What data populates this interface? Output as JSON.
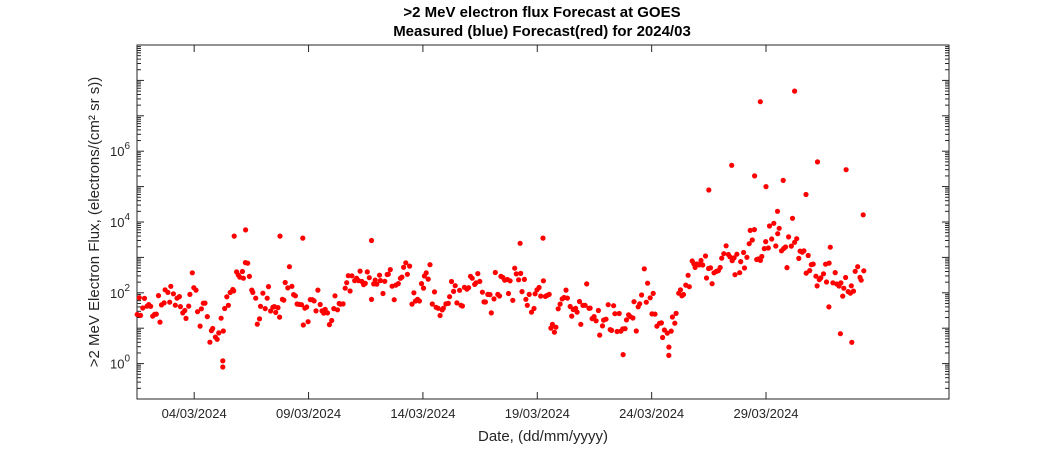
{
  "chart_data": {
    "type": "scatter",
    "title": ">2 MeV electron flux Forecast at GOES",
    "subtitle": "Measured (blue) Forecast(red) for 2024/03",
    "xlabel": "Date, (dd/mm/yyyy)",
    "ylabel": ">2 MeV Electron Flux, (electrons/(cm² sr s))",
    "yscale": "log",
    "xlim": [
      "2024-03-01T12:00",
      "2024-04-06T00:00"
    ],
    "ylim": [
      0.1,
      1000000000
    ],
    "xticks": [
      {
        "date": "2024-03-04",
        "label": "04/03/2024"
      },
      {
        "date": "2024-03-09",
        "label": "09/03/2024"
      },
      {
        "date": "2024-03-14",
        "label": "14/03/2024"
      },
      {
        "date": "2024-03-19",
        "label": "19/03/2024"
      },
      {
        "date": "2024-03-24",
        "label": "24/03/2024"
      },
      {
        "date": "2024-03-29",
        "label": "29/03/2024"
      }
    ],
    "yticks": [
      {
        "value": 1,
        "base": "10",
        "exp": "0"
      },
      {
        "value": 100,
        "base": "10",
        "exp": "2"
      },
      {
        "value": 10000,
        "base": "10",
        "exp": "4"
      },
      {
        "value": 1000000,
        "base": "10",
        "exp": "6"
      }
    ],
    "grid": false,
    "series": [
      {
        "color": "#ff0000",
        "marker": "filled-circle",
        "anchors": [
          [
            "2024-03-01T12:00",
            60
          ],
          [
            "2024-03-02T06:00",
            25
          ],
          [
            "2024-03-03T00:00",
            100
          ],
          [
            "2024-03-03T12:00",
            40
          ],
          [
            "2024-03-04T00:00",
            140
          ],
          [
            "2024-03-04T12:00",
            20
          ],
          [
            "2024-03-05T00:00",
            5
          ],
          [
            "2024-03-05T18:00",
            200
          ],
          [
            "2024-03-06T06:00",
            700
          ],
          [
            "2024-03-06T18:00",
            25
          ],
          [
            "2024-03-07T06:00",
            60
          ],
          [
            "2024-03-07T18:00",
            35
          ],
          [
            "2024-03-08T06:00",
            150
          ],
          [
            "2024-03-08T18:00",
            30
          ],
          [
            "2024-03-09T06:00",
            90
          ],
          [
            "2024-03-09T18:00",
            20
          ],
          [
            "2024-03-10T06:00",
            50
          ],
          [
            "2024-03-10T18:00",
            140
          ],
          [
            "2024-03-11T06:00",
            350
          ],
          [
            "2024-03-11T18:00",
            150
          ],
          [
            "2024-03-12T06:00",
            250
          ],
          [
            "2024-03-12T18:00",
            100
          ],
          [
            "2024-03-13T06:00",
            500
          ],
          [
            "2024-03-13T18:00",
            60
          ],
          [
            "2024-03-14T06:00",
            250
          ],
          [
            "2024-03-14T18:00",
            30
          ],
          [
            "2024-03-15T06:00",
            140
          ],
          [
            "2024-03-15T18:00",
            60
          ],
          [
            "2024-03-16T06:00",
            400
          ],
          [
            "2024-03-16T18:00",
            80
          ],
          [
            "2024-03-17T06:00",
            200
          ],
          [
            "2024-03-17T18:00",
            120
          ],
          [
            "2024-03-18T06:00",
            400
          ],
          [
            "2024-03-18T18:00",
            30
          ],
          [
            "2024-03-19T06:00",
            200
          ],
          [
            "2024-03-19T18:00",
            8
          ],
          [
            "2024-03-20T06:00",
            60
          ],
          [
            "2024-03-20T18:00",
            20
          ],
          [
            "2024-03-21T06:00",
            50
          ],
          [
            "2024-03-21T18:00",
            15
          ],
          [
            "2024-03-22T06:00",
            40
          ],
          [
            "2024-03-22T18:00",
            8
          ],
          [
            "2024-03-23T06:00",
            30
          ],
          [
            "2024-03-23T18:00",
            120
          ],
          [
            "2024-03-24T06:00",
            15
          ],
          [
            "2024-03-24T18:00",
            4
          ],
          [
            "2024-03-25T06:00",
            100
          ],
          [
            "2024-03-25T18:00",
            400
          ],
          [
            "2024-03-26T06:00",
            600
          ],
          [
            "2024-03-26T18:00",
            300
          ],
          [
            "2024-03-27T06:00",
            1500
          ],
          [
            "2024-03-27T18:00",
            800
          ],
          [
            "2024-03-28T06:00",
            2000
          ],
          [
            "2024-03-28T18:00",
            1200
          ],
          [
            "2024-03-29T06:00",
            5000
          ],
          [
            "2024-03-29T18:00",
            1500
          ],
          [
            "2024-03-30T06:00",
            3000
          ],
          [
            "2024-03-30T18:00",
            1000
          ],
          [
            "2024-03-31T06:00",
            300
          ],
          [
            "2024-03-31T18:00",
            600
          ],
          [
            "2024-04-01T06:00",
            150
          ],
          [
            "2024-04-01T18:00",
            200
          ],
          [
            "2024-04-02T06:00",
            300
          ]
        ],
        "spread": 0.42,
        "points_per_day": 12,
        "extra_points": [
          [
            "2024-03-28T18:00",
            25000000
          ],
          [
            "2024-03-30T06:00",
            50000000
          ],
          [
            "2024-03-31T06:00",
            500000
          ],
          [
            "2024-04-01T12:00",
            300000
          ],
          [
            "2024-03-27T12:00",
            400000
          ],
          [
            "2024-03-28T12:00",
            200000
          ],
          [
            "2024-03-26T12:00",
            80000
          ],
          [
            "2024-03-29T00:00",
            100000
          ],
          [
            "2024-03-29T18:00",
            150000
          ],
          [
            "2024-03-30T18:00",
            60000
          ],
          [
            "2024-03-29T12:00",
            20000
          ],
          [
            "2024-04-02T06:00",
            16000
          ],
          [
            "2024-03-06T06:00",
            6000
          ],
          [
            "2024-03-05T18:00",
            4000
          ],
          [
            "2024-03-07T18:00",
            4000
          ],
          [
            "2024-03-08T18:00",
            3500
          ],
          [
            "2024-03-11T18:00",
            3000
          ],
          [
            "2024-03-19T06:00",
            3500
          ],
          [
            "2024-03-18T06:00",
            2500
          ],
          [
            "2024-03-05T06:00",
            0.8
          ],
          [
            "2024-03-05T06:00",
            1.2
          ],
          [
            "2024-03-22T18:00",
            1.8
          ],
          [
            "2024-03-24T18:00",
            1.7
          ],
          [
            "2024-03-31T18:00",
            40
          ],
          [
            "2024-04-01T06:00",
            7
          ],
          [
            "2024-04-01T18:00",
            4
          ]
        ]
      }
    ]
  }
}
